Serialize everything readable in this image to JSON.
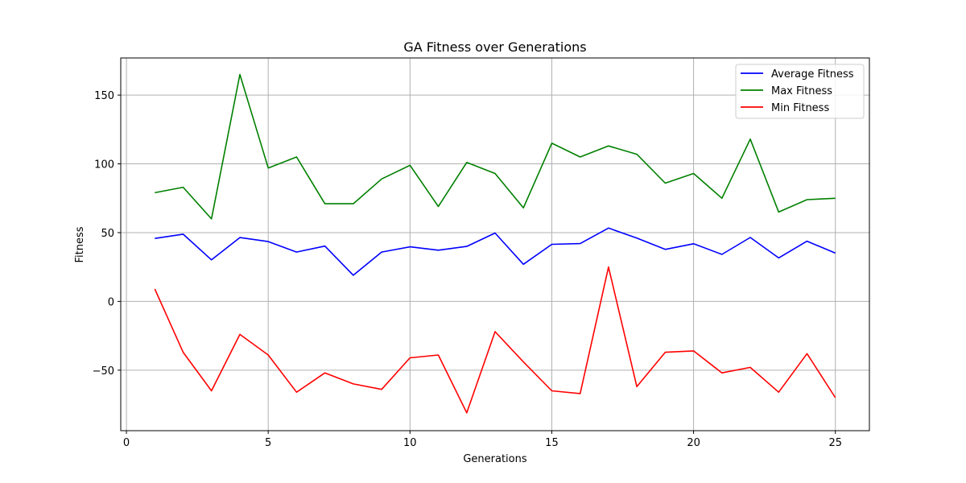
{
  "chart_data": {
    "type": "line",
    "title": "GA Fitness over Generations",
    "xlabel": "Generations",
    "ylabel": "Fitness",
    "xlim": [
      -0.2,
      26.2
    ],
    "ylim": [
      -94,
      177
    ],
    "xticks": [
      0,
      5,
      10,
      15,
      20,
      25
    ],
    "yticks": [
      -50,
      0,
      50,
      100,
      150
    ],
    "grid": true,
    "legend_position": "top-right",
    "x": [
      1,
      2,
      3,
      4,
      5,
      6,
      7,
      8,
      9,
      10,
      11,
      12,
      13,
      14,
      15,
      16,
      17,
      18,
      19,
      20,
      21,
      22,
      23,
      24,
      25
    ],
    "series": [
      {
        "name": "Average Fitness",
        "color": "#0000ff",
        "values": [
          45.8,
          48.9,
          30.2,
          46.4,
          43.5,
          35.9,
          40.2,
          19.0,
          35.9,
          39.7,
          37.2,
          40.0,
          49.7,
          27.0,
          41.5,
          42.0,
          53.3,
          46.0,
          37.8,
          41.9,
          34.2,
          46.5,
          31.6,
          43.8,
          35.1
        ]
      },
      {
        "name": "Max Fitness",
        "color": "#008000",
        "values": [
          79,
          83,
          60,
          165,
          97,
          105,
          71,
          71,
          89,
          99,
          69,
          101,
          93,
          68,
          115,
          105,
          113,
          107,
          86,
          93,
          75,
          118,
          65,
          74,
          75
        ]
      },
      {
        "name": "Min Fitness",
        "color": "#ff0000",
        "values": [
          9,
          -37,
          -65,
          -24,
          -39,
          -66,
          -52,
          -60,
          -64,
          -41,
          -39,
          -81,
          -22,
          -44,
          -65,
          -67,
          25,
          -62,
          -37,
          -36,
          -52,
          -48,
          -66,
          -38,
          -70
        ]
      }
    ]
  }
}
